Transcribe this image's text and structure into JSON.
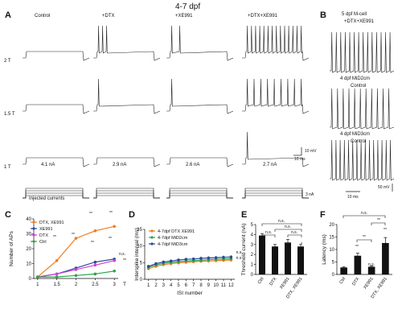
{
  "title": "4-7 dpf",
  "panels": {
    "A": {
      "label": "A",
      "columns": [
        "Control",
        "+DTX",
        "+XE991",
        "+DTX+XE991"
      ],
      "rows": [
        "2 T",
        "1.5 T",
        "1 T"
      ],
      "currents": [
        "4.1 nA",
        "2.9 nA",
        "2.6 nA",
        "2.7 nA"
      ],
      "scale_v": "10 mV",
      "scale_t": "10 ms",
      "injected_label": "Injected currents",
      "scale_i": "3 nA"
    },
    "B": {
      "label": "B",
      "labels": [
        [
          "5 dpf M-cell",
          "+DTX+XE991"
        ],
        [
          "4 dpf MiD2cm",
          "Control"
        ],
        [
          "4 dpf MiD3cm",
          "Control"
        ]
      ],
      "scale_v": "50 mV",
      "scale_t": "10 ms"
    },
    "C": {
      "label": "C"
    },
    "D": {
      "label": "D"
    },
    "E": {
      "label": "E"
    },
    "F": {
      "label": "F"
    }
  },
  "chart_data": [
    {
      "type": "line",
      "panel": "C",
      "xlabel": "T",
      "ylabel": "Number of APs",
      "x": [
        1,
        1.5,
        2,
        2.5,
        3
      ],
      "xlim": [
        0.9,
        3.1
      ],
      "ylim": [
        0,
        40
      ],
      "xticks": [
        "1",
        "1.5",
        "2",
        "2.5",
        "3"
      ],
      "yticks": [
        "0",
        "10",
        "20",
        "30",
        "40"
      ],
      "legend": "top-left",
      "series": [
        {
          "name": "DTX, XE991",
          "color": "#f07c1e",
          "values": [
            1,
            12,
            27,
            32,
            35
          ]
        },
        {
          "name": "XE991",
          "color": "#2a4b9b",
          "values": [
            1,
            3,
            7,
            11,
            13
          ]
        },
        {
          "name": "DTX",
          "color": "#d43fd6",
          "values": [
            1,
            3,
            6,
            9,
            12
          ]
        },
        {
          "name": "Ctrl",
          "color": "#2aa64a",
          "values": [
            1,
            1,
            2,
            3,
            5
          ]
        }
      ],
      "annotations": [
        "**",
        "**",
        "**",
        "**",
        "**",
        "**",
        "n.s.",
        "**"
      ]
    },
    {
      "type": "line",
      "panel": "D",
      "xlabel": "ISI number",
      "ylabel": "Interspike interval (ms)",
      "x": [
        1,
        2,
        3,
        4,
        5,
        6,
        7,
        8,
        9,
        10,
        11,
        12
      ],
      "xlim": [
        0.5,
        12.5
      ],
      "ylim": [
        0,
        15
      ],
      "xticks": [
        "1",
        "2",
        "3",
        "4",
        "5",
        "6",
        "7",
        "8",
        "9",
        "10",
        "11",
        "12"
      ],
      "yticks": [
        "0",
        "5",
        "10",
        "15"
      ],
      "legend": "top-left",
      "series": [
        {
          "name": "4-7dpf DTX XE991",
          "color": "#f07c1e",
          "values": [
            3.2,
            3.9,
            4.4,
            4.7,
            4.9,
            5.1,
            5.3,
            5.4,
            5.5,
            5.6,
            5.7,
            5.8
          ]
        },
        {
          "name": "4-7dpf MiD2cm",
          "color": "#2aa64a",
          "values": [
            3.6,
            4.3,
            4.8,
            5.1,
            5.3,
            5.5,
            5.6,
            5.7,
            5.9,
            6.0,
            6.1,
            6.2
          ]
        },
        {
          "name": "4-7dpf MiD3cm",
          "color": "#2a4b9b",
          "values": [
            3.9,
            4.7,
            5.2,
            5.5,
            5.8,
            6.0,
            6.1,
            6.3,
            6.4,
            6.5,
            6.6,
            6.7
          ]
        }
      ],
      "annotations": [
        "n.s",
        "n.s"
      ]
    },
    {
      "type": "bar",
      "panel": "E",
      "ylabel": "Threshold current (nA)",
      "categories": [
        "Ctrl",
        "DTX",
        "XE991",
        "DTX, XE991"
      ],
      "values": [
        3.9,
        2.8,
        3.2,
        2.8
      ],
      "errors": [
        0.2,
        0.2,
        0.3,
        0.2
      ],
      "ylim": [
        0,
        5
      ],
      "yticks": [
        "0",
        "1",
        "2",
        "3",
        "4",
        "5"
      ],
      "annotations": [
        "**",
        "**",
        "*",
        "n.s.",
        "n.s.",
        "n.s.",
        "n.s."
      ]
    },
    {
      "type": "bar",
      "panel": "F",
      "ylabel": "Latency (ms)",
      "categories": [
        "Ctrl",
        "DTX",
        "XE991",
        "DTX, XE991"
      ],
      "values": [
        2.8,
        7.5,
        3.1,
        12.6
      ],
      "errors": [
        0.2,
        1.0,
        0.3,
        2.2
      ],
      "ylim": [
        0,
        20
      ],
      "yticks": [
        "0",
        "5",
        "10",
        "15",
        "20"
      ],
      "annotations": [
        "**",
        "n.s.",
        "**",
        "**",
        "**",
        "n.s."
      ]
    }
  ]
}
